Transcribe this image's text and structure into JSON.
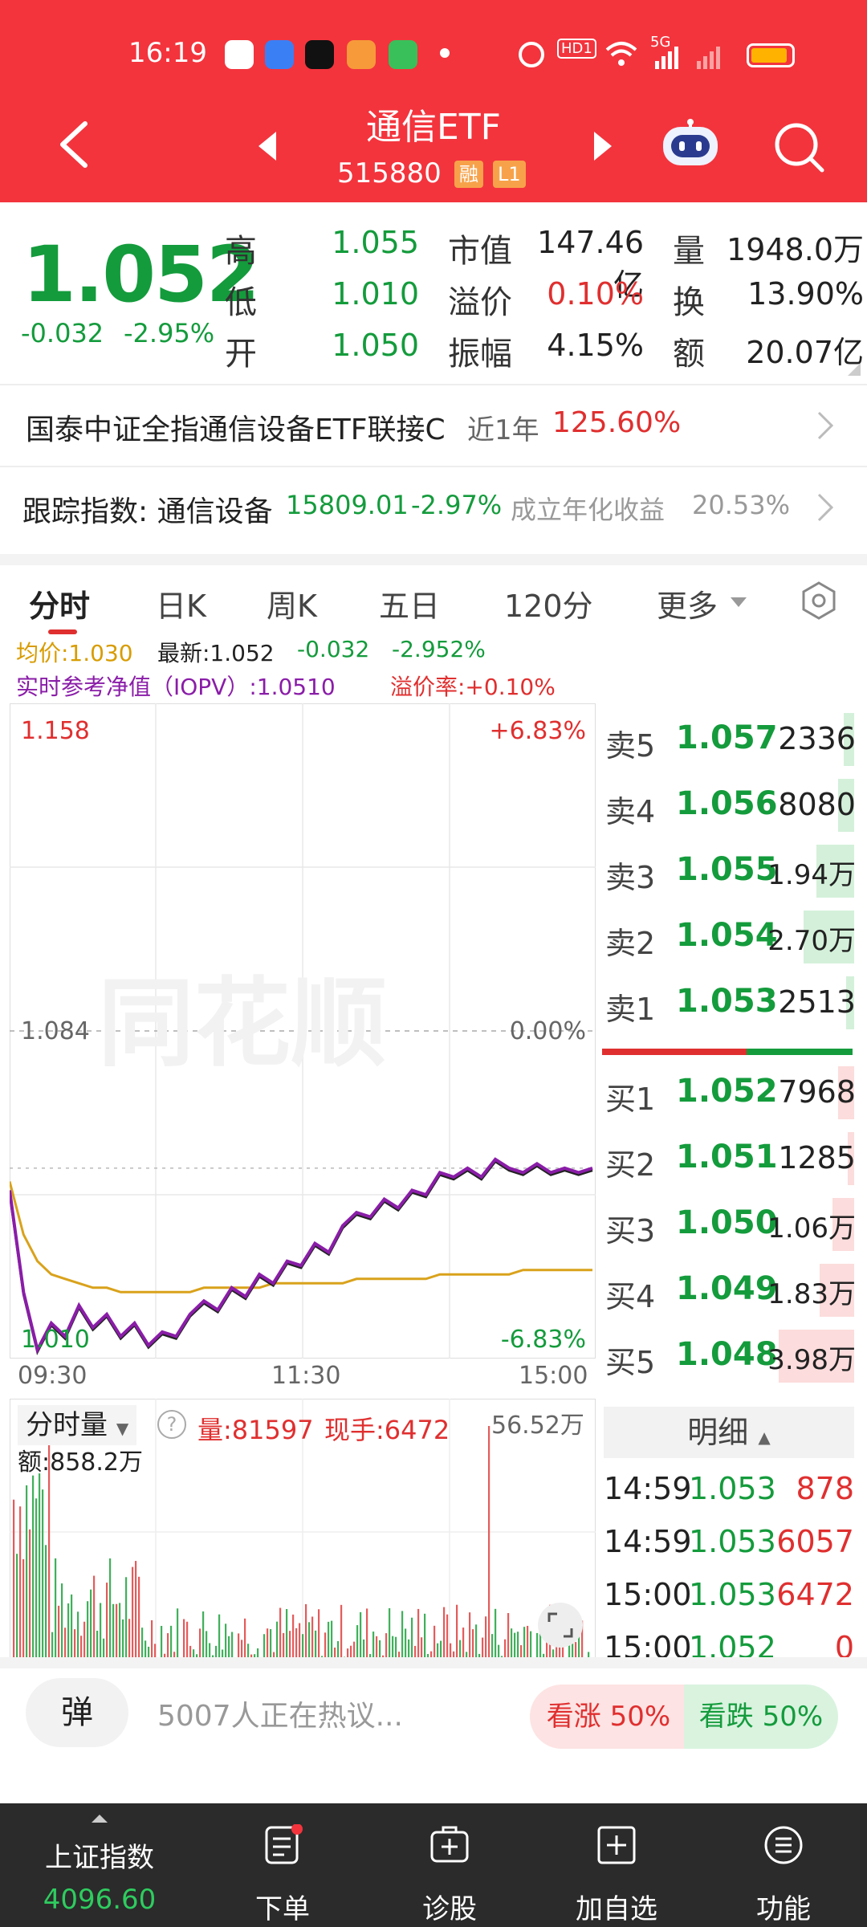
{
  "status_bar": {
    "time": "16:19",
    "network": "5G",
    "hd": "HD1"
  },
  "header": {
    "title": "通信ETF",
    "code": "515880",
    "tags": [
      "融",
      "L1"
    ]
  },
  "quote": {
    "price": "1.052",
    "change": "-0.032",
    "change_pct": "-2.95%",
    "stats": [
      {
        "label": "高",
        "value": "1.055",
        "color": "green"
      },
      {
        "label": "低",
        "value": "1.010",
        "color": "green"
      },
      {
        "label": "开",
        "value": "1.050",
        "color": "green"
      },
      {
        "label": "市值",
        "value": "147.46亿",
        "color": "black"
      },
      {
        "label": "溢价",
        "value": "0.10%",
        "color": "red"
      },
      {
        "label": "振幅",
        "value": "4.15%",
        "color": "black"
      },
      {
        "label": "量",
        "value": "1948.0万",
        "color": "black"
      },
      {
        "label": "换",
        "value": "13.90%",
        "color": "black"
      },
      {
        "label": "额",
        "value": "20.07亿",
        "color": "black"
      }
    ]
  },
  "linked_fund": {
    "name": "国泰中证全指通信设备ETF联接C",
    "period": "近1年",
    "return": "125.60%"
  },
  "tracking": {
    "label": "跟踪指数: 通信设备",
    "value": "15809.01",
    "pct": "-2.97%",
    "since_label": "成立年化收益",
    "since_value": "20.53%"
  },
  "tabs": [
    "分时",
    "日K",
    "周K",
    "五日",
    "120分",
    "更多"
  ],
  "info": {
    "avg_label": "均价:1.030",
    "latest_label": "最新:1.052",
    "chg": "-0.032",
    "chg_pct": "-2.952%",
    "iopv_label": "实时参考净值（IOPV）:1.0510",
    "premium_label": "溢价率:+0.10%"
  },
  "chart_data": {
    "type": "line",
    "ylim": [
      1.01,
      1.158
    ],
    "y_labels": {
      "top": "1.158",
      "mid": "1.084",
      "bottom": "1.010",
      "top_pct": "+6.83%",
      "mid_pct": "0.00%",
      "bottom_pct": "-6.83%"
    },
    "x_labels": [
      "09:30",
      "11:30",
      "15:00"
    ],
    "series": [
      {
        "values": [
          1.048,
          1.025,
          1.012,
          1.018,
          1.015,
          1.022,
          1.017,
          1.02,
          1.015,
          1.018,
          1.013,
          1.016,
          1.015,
          1.02,
          1.023,
          1.021,
          1.026,
          1.024,
          1.029,
          1.027,
          1.032,
          1.031,
          1.036,
          1.034,
          1.04,
          1.043,
          1.042,
          1.046,
          1.044,
          1.048,
          1.047,
          1.052,
          1.051,
          1.053,
          1.051,
          1.055,
          1.053,
          1.052,
          1.054,
          1.052,
          1.053,
          1.052,
          1.053
        ]
      },
      {
        "values": [
          1.05,
          1.038,
          1.032,
          1.029,
          1.028,
          1.027,
          1.026,
          1.026,
          1.025,
          1.025,
          1.025,
          1.025,
          1.025,
          1.025,
          1.026,
          1.026,
          1.026,
          1.026,
          1.026,
          1.027,
          1.027,
          1.027,
          1.027,
          1.027,
          1.027,
          1.028,
          1.028,
          1.028,
          1.028,
          1.028,
          1.028,
          1.029,
          1.029,
          1.029,
          1.029,
          1.029,
          1.029,
          1.03,
          1.03,
          1.03,
          1.03,
          1.03,
          1.03
        ]
      }
    ]
  },
  "volume": {
    "label": "分时量",
    "vol_label": "量:81597",
    "now_label": "现手:6472",
    "amount_label": "额:858.2万",
    "max_label": "56.52万"
  },
  "order_book": {
    "asks": [
      {
        "label": "卖5",
        "price": "1.057",
        "vol": "2336",
        "bar": 0.04
      },
      {
        "label": "卖4",
        "price": "1.056",
        "vol": "8080",
        "bar": 0.06
      },
      {
        "label": "卖3",
        "price": "1.055",
        "vol": "1.94万",
        "bar": 0.14
      },
      {
        "label": "卖2",
        "price": "1.054",
        "vol": "2.70万",
        "bar": 0.19
      },
      {
        "label": "卖1",
        "price": "1.053",
        "vol": "2513",
        "bar": 0.03
      }
    ],
    "bids": [
      {
        "label": "买1",
        "price": "1.052",
        "vol": "7968",
        "bar": 0.06
      },
      {
        "label": "买2",
        "price": "1.051",
        "vol": "1285",
        "bar": 0.02
      },
      {
        "label": "买3",
        "price": "1.050",
        "vol": "1.06万",
        "bar": 0.08
      },
      {
        "label": "买4",
        "price": "1.049",
        "vol": "1.83万",
        "bar": 0.13
      },
      {
        "label": "买5",
        "price": "1.048",
        "vol": "3.98万",
        "bar": 0.28
      }
    ]
  },
  "detail": {
    "header": "明细",
    "ticks": [
      {
        "time": "14:59",
        "price": "1.053",
        "vol": "878"
      },
      {
        "time": "14:59",
        "price": "1.053",
        "vol": "6057"
      },
      {
        "time": "15:00",
        "price": "1.053",
        "vol": "6472"
      },
      {
        "time": "15:00",
        "price": "1.052",
        "vol": "0"
      }
    ]
  },
  "comment": {
    "danmu": "弹",
    "discuss": "5007人正在热议...",
    "bull": "看涨 50%",
    "bear": "看跌 50%"
  },
  "bottom_nav": {
    "index_name": "上证指数",
    "index_value": "4096.60",
    "items": [
      "下单",
      "诊股",
      "加自选",
      "功能"
    ]
  }
}
